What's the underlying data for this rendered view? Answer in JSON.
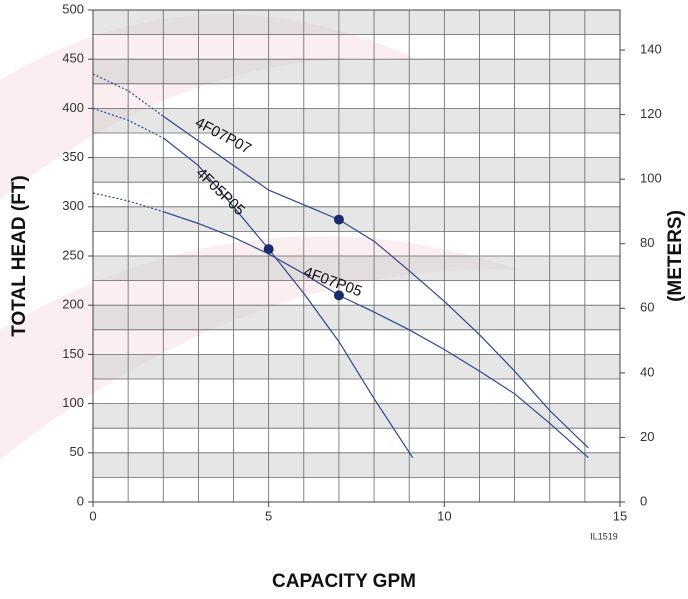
{
  "chart_data": {
    "type": "line",
    "x_label": "CAPACITY GPM",
    "y_label": "TOTAL HEAD (FT)",
    "y2_label": "(METERS)",
    "code": "IL1519",
    "xlim": [
      0,
      15
    ],
    "xticks": [
      0,
      5,
      10,
      15
    ],
    "xminorticks": [
      0,
      1,
      2,
      3,
      4,
      5,
      6,
      7,
      8,
      9,
      10,
      11,
      12,
      13,
      14,
      15
    ],
    "ylim": [
      0,
      500
    ],
    "yticks": [
      0,
      50,
      100,
      150,
      200,
      250,
      300,
      350,
      400,
      450,
      500
    ],
    "yminorticks": [
      0,
      25,
      50,
      75,
      100,
      125,
      150,
      175,
      200,
      225,
      250,
      275,
      300,
      325,
      350,
      375,
      400,
      425,
      450,
      475,
      500
    ],
    "y2lim": [
      0,
      152.4
    ],
    "y2ticks": [
      0,
      20,
      40,
      60,
      80,
      100,
      120,
      140
    ],
    "grid": true,
    "series": [
      {
        "name": "4F07P07",
        "color": "#2b4a8f",
        "x": [
          0,
          1,
          2,
          3,
          4,
          5,
          6,
          7,
          8,
          9,
          10,
          11,
          12,
          13,
          14.1
        ],
        "dotted_values": [
          435,
          418,
          392,
          null,
          null,
          null,
          null,
          null,
          null,
          null,
          null,
          null,
          null,
          null,
          null
        ],
        "values": [
          null,
          null,
          392,
          367,
          342,
          317,
          302,
          287,
          265,
          235,
          204,
          170,
          133,
          93,
          55
        ],
        "rated_x": [
          7
        ],
        "rated_y": [
          287
        ]
      },
      {
        "name": "4F05P05",
        "color": "#2b4a8f",
        "x": [
          0,
          1,
          2,
          3,
          4,
          5,
          6,
          7,
          8,
          9.1
        ],
        "dotted_values": [
          400,
          388,
          370,
          null,
          null,
          null,
          null,
          null,
          null,
          null
        ],
        "values": [
          null,
          null,
          370,
          342,
          300,
          257,
          212,
          163,
          105,
          45
        ],
        "rated_x": [
          5
        ],
        "rated_y": [
          257
        ]
      },
      {
        "name": "4F07P05",
        "color": "#2b4a8f",
        "x": [
          0,
          1,
          2,
          3,
          4,
          5,
          6,
          7,
          8,
          9,
          10,
          11,
          12,
          13,
          14.1
        ],
        "dotted_values": [
          314,
          306,
          295,
          null,
          null,
          null,
          null,
          null,
          null,
          null,
          null,
          null,
          null,
          null,
          null
        ],
        "values": [
          null,
          null,
          295,
          283,
          269,
          252,
          232,
          210,
          193,
          175,
          155,
          133,
          110,
          80,
          45
        ],
        "rated_x": [
          7
        ],
        "rated_y": [
          210
        ]
      }
    ],
    "marker_color": "#1a2b6b"
  }
}
